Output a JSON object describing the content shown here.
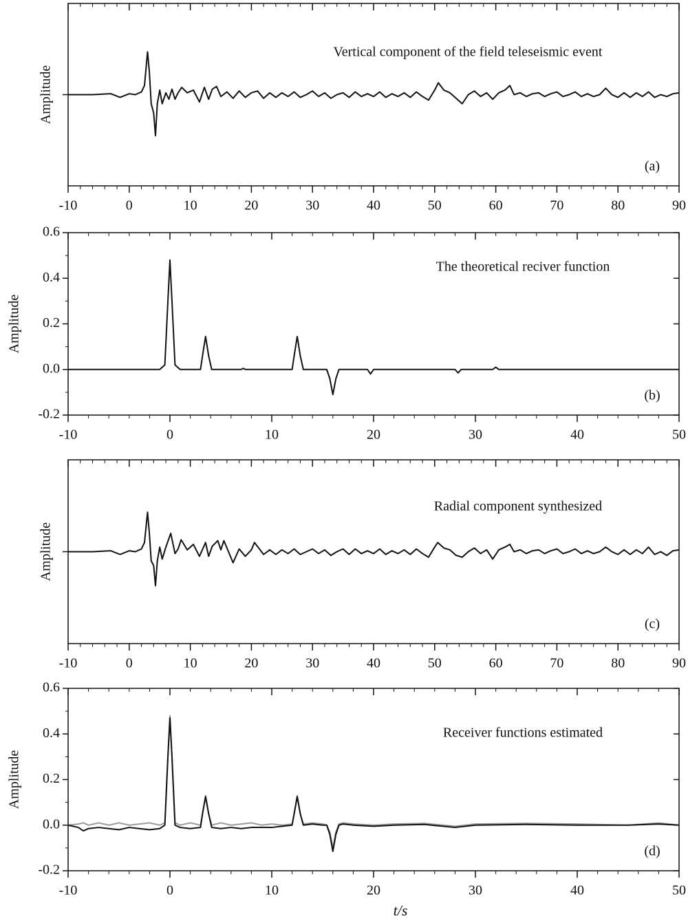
{
  "chart_data": [
    {
      "type": "line",
      "title": "Vertical component of the field teleseismic event",
      "ylabel": "Amplitude",
      "annotation": "(a)",
      "xlim": [
        -10,
        90
      ],
      "xticks": [
        -10,
        0,
        10,
        20,
        30,
        40,
        50,
        60,
        70,
        80,
        90
      ],
      "ylim": [
        -1,
        1
      ],
      "x": [
        -10,
        -6,
        -3,
        -1.5,
        0,
        1,
        2,
        2.5,
        3,
        3.3,
        3.6,
        4,
        4.3,
        4.6,
        5,
        5.4,
        6,
        6.5,
        7,
        7.5,
        8,
        8.6,
        9.5,
        10.5,
        11.5,
        12.3,
        13,
        13.6,
        14.3,
        15,
        16,
        17,
        18,
        19,
        20,
        21,
        22,
        23,
        24,
        25,
        26,
        27,
        28,
        29,
        30,
        31,
        32,
        33,
        34,
        35,
        36,
        37,
        38,
        39,
        40,
        41,
        42,
        43,
        44,
        45,
        46,
        47,
        48,
        49,
        50,
        50.6,
        51.5,
        52.5,
        53.5,
        54.5,
        55.5,
        56.5,
        57.5,
        58.5,
        59.5,
        60.5,
        61.5,
        62.3,
        63,
        64,
        65,
        66,
        67,
        68,
        69,
        70,
        71,
        72,
        73,
        74,
        75,
        76,
        77,
        78,
        79,
        80,
        81,
        82,
        83,
        84,
        85,
        86,
        87,
        88,
        89,
        90
      ],
      "series": [
        {
          "color": "#111111",
          "values": [
            0,
            0,
            0.01,
            -0.03,
            0.01,
            0,
            0.03,
            0.1,
            0.47,
            0.25,
            -0.1,
            -0.2,
            -0.45,
            -0.1,
            0.05,
            -0.1,
            0.02,
            -0.05,
            0.06,
            -0.05,
            0.02,
            0.08,
            0.02,
            0.05,
            -0.08,
            0.08,
            -0.05,
            0.06,
            0.09,
            -0.02,
            0.03,
            -0.04,
            0.04,
            -0.03,
            0.02,
            0.04,
            -0.04,
            0.02,
            -0.03,
            0.02,
            -0.02,
            0.03,
            -0.03,
            0,
            0.04,
            -0.02,
            0.02,
            -0.04,
            0,
            0.02,
            -0.03,
            0.03,
            -0.02,
            0.01,
            -0.02,
            0.03,
            -0.03,
            0.01,
            -0.02,
            0.02,
            -0.03,
            0.03,
            -0.02,
            -0.06,
            0.05,
            0.13,
            0.05,
            0.02,
            -0.04,
            -0.1,
            0,
            0.04,
            -0.02,
            0.02,
            -0.05,
            0.02,
            0.05,
            0.1,
            0,
            0.02,
            -0.02,
            0.01,
            0.02,
            -0.02,
            0.01,
            0.03,
            -0.02,
            0,
            0.03,
            -0.02,
            0.01,
            -0.02,
            0,
            0.07,
            0,
            -0.03,
            0.02,
            -0.03,
            0.02,
            -0.02,
            0.03,
            -0.03,
            0,
            -0.02,
            0.01,
            0.02
          ]
        }
      ]
    },
    {
      "type": "line",
      "title": "The theoretical reciver function",
      "ylabel": "Amplitude",
      "annotation": "(b)",
      "xlim": [
        -10,
        50
      ],
      "xticks": [
        -10,
        0,
        10,
        20,
        30,
        40,
        50
      ],
      "ylim": [
        -0.2,
        0.6
      ],
      "yticks": [
        -0.2,
        {
          "value": 0,
          "label": "0.0"
        },
        0.2,
        0.4,
        0.6
      ],
      "x": [
        -10,
        -1,
        -0.5,
        -0.2,
        0,
        0.2,
        0.5,
        1,
        3,
        3.2,
        3.5,
        3.8,
        4.1,
        7,
        7.2,
        7.4,
        12,
        12.2,
        12.5,
        12.8,
        13.1,
        15.4,
        15.7,
        16,
        16.3,
        16.6,
        19.4,
        19.7,
        20,
        28,
        28.3,
        28.6,
        31.7,
        32,
        32.3,
        50
      ],
      "series": [
        {
          "color": "#111111",
          "values": [
            0,
            0,
            0.02,
            0.3,
            0.48,
            0.3,
            0.02,
            0,
            0,
            0.06,
            0.145,
            0.06,
            0,
            0,
            0.005,
            0,
            0,
            0.06,
            0.145,
            0.06,
            0,
            0,
            -0.04,
            -0.11,
            -0.04,
            0,
            0,
            -0.02,
            0,
            0,
            -0.015,
            0,
            0,
            0.01,
            0,
            0
          ]
        }
      ]
    },
    {
      "type": "line",
      "title": "Radial component  synthesized",
      "ylabel": "Amplitude",
      "annotation": "(c)",
      "xlim": [
        -10,
        90
      ],
      "xticks": [
        -10,
        0,
        10,
        20,
        30,
        40,
        50,
        60,
        70,
        80,
        90
      ],
      "ylim": [
        -1,
        1
      ],
      "x": [
        -10,
        -6,
        -3,
        -1.5,
        0,
        1,
        2,
        2.5,
        3,
        3.3,
        3.6,
        4,
        4.3,
        4.6,
        5,
        5.4,
        6,
        6.8,
        7.5,
        8,
        8.5,
        9.5,
        10.5,
        11.5,
        12.5,
        13,
        13.6,
        14.5,
        15,
        15.5,
        16,
        17,
        18,
        19,
        20,
        20.5,
        22,
        23,
        24,
        25,
        26,
        27,
        28,
        29,
        30,
        31,
        32,
        33,
        34,
        35,
        36,
        37,
        38,
        39,
        40,
        41,
        42,
        43,
        44,
        45,
        46,
        47,
        48,
        49,
        50,
        50.5,
        51.5,
        52.5,
        53.5,
        54.5,
        55.5,
        56.5,
        57.5,
        58.5,
        59.5,
        60.5,
        61.5,
        62.3,
        63,
        64,
        65,
        66,
        67,
        68,
        69,
        70,
        71,
        72,
        73,
        74,
        75,
        76,
        77,
        78,
        79,
        80,
        81,
        82,
        83,
        84,
        85,
        86,
        87,
        88,
        89,
        90
      ],
      "series": [
        {
          "color": "#111111",
          "values": [
            0,
            0,
            0.01,
            -0.03,
            0.01,
            0,
            0.03,
            0.1,
            0.43,
            0.2,
            -0.1,
            -0.15,
            -0.37,
            -0.1,
            0.05,
            -0.08,
            0.05,
            0.2,
            -0.02,
            0.03,
            0.13,
            0.02,
            0.08,
            -0.05,
            0.1,
            -0.05,
            0.06,
            0.12,
            0.02,
            0.12,
            0.04,
            -0.12,
            0.03,
            -0.05,
            0.02,
            0.1,
            -0.03,
            0.02,
            -0.03,
            0.02,
            -0.02,
            0.03,
            -0.03,
            0,
            0.03,
            -0.02,
            0.02,
            -0.04,
            0,
            0.03,
            -0.03,
            0.03,
            -0.02,
            0.01,
            -0.02,
            0.03,
            -0.03,
            0.01,
            -0.02,
            0.02,
            -0.03,
            0.03,
            -0.02,
            -0.06,
            0.05,
            0.1,
            0.04,
            0.02,
            -0.04,
            -0.06,
            0,
            0.04,
            -0.02,
            0.02,
            -0.08,
            0.02,
            0.05,
            0.08,
            0,
            0.02,
            -0.02,
            0.01,
            0.02,
            -0.02,
            0.01,
            0.03,
            -0.02,
            0,
            0.03,
            -0.02,
            0.01,
            -0.02,
            0,
            0.05,
            0,
            -0.03,
            0.02,
            -0.03,
            0.02,
            -0.02,
            0.05,
            -0.03,
            0,
            -0.04,
            0.01,
            0.02
          ]
        }
      ]
    },
    {
      "type": "line",
      "title": "Receiver functions estimated",
      "ylabel": "Amplitude",
      "annotation": "(d)",
      "xlabel": "t/s",
      "xlim": [
        -10,
        50
      ],
      "xticks": [
        -10,
        0,
        10,
        20,
        30,
        40,
        50
      ],
      "ylim": [
        -0.2,
        0.6
      ],
      "yticks": [
        -0.2,
        {
          "value": 0,
          "label": "0.0"
        },
        0.2,
        0.4,
        0.6
      ],
      "x": [
        -10,
        -9,
        -8.5,
        -8,
        -7,
        -6,
        -5,
        -4,
        -3,
        -2,
        -1,
        -0.5,
        -0.2,
        0,
        0.2,
        0.5,
        1,
        2,
        3,
        3.2,
        3.5,
        3.8,
        4.1,
        5,
        6,
        7,
        8,
        9,
        10,
        11,
        12,
        12.2,
        12.5,
        12.8,
        13.1,
        14,
        15,
        15.4,
        15.7,
        16,
        16.3,
        16.6,
        17,
        18,
        20,
        22,
        25,
        28,
        30,
        35,
        40,
        45,
        48,
        50
      ],
      "series": [
        {
          "color": "#999999",
          "values": [
            0,
            0.005,
            0.01,
            0,
            0.01,
            0,
            0.01,
            0,
            0.005,
            0.01,
            0,
            0.01,
            0.3,
            0.48,
            0.3,
            0.01,
            0,
            0.01,
            0,
            0.05,
            0.13,
            0.05,
            0,
            0.01,
            0,
            0.005,
            0.01,
            0,
            0.005,
            0,
            0.005,
            0.05,
            0.13,
            0.05,
            0.005,
            0.01,
            0.005,
            0,
            -0.03,
            -0.1,
            -0.03,
            0.005,
            0.01,
            0.005,
            0,
            0.005,
            0.008,
            -0.005,
            0.005,
            0.008,
            0.005,
            0,
            0.01,
            0
          ]
        },
        {
          "color": "#111111",
          "values": [
            0,
            -0.01,
            -0.025,
            -0.015,
            -0.01,
            -0.015,
            -0.02,
            -0.01,
            -0.015,
            -0.02,
            -0.015,
            0,
            0.3,
            0.47,
            0.3,
            0,
            -0.01,
            -0.015,
            -0.01,
            0.05,
            0.125,
            0.05,
            -0.01,
            -0.015,
            -0.01,
            -0.015,
            -0.01,
            -0.01,
            -0.01,
            -0.005,
            0,
            0.05,
            0.125,
            0.05,
            0,
            0.005,
            0,
            0,
            -0.04,
            -0.115,
            -0.04,
            0,
            0.005,
            0,
            -0.005,
            0,
            0.003,
            -0.01,
            0,
            0.003,
            0,
            0,
            0.005,
            0
          ]
        }
      ]
    }
  ]
}
